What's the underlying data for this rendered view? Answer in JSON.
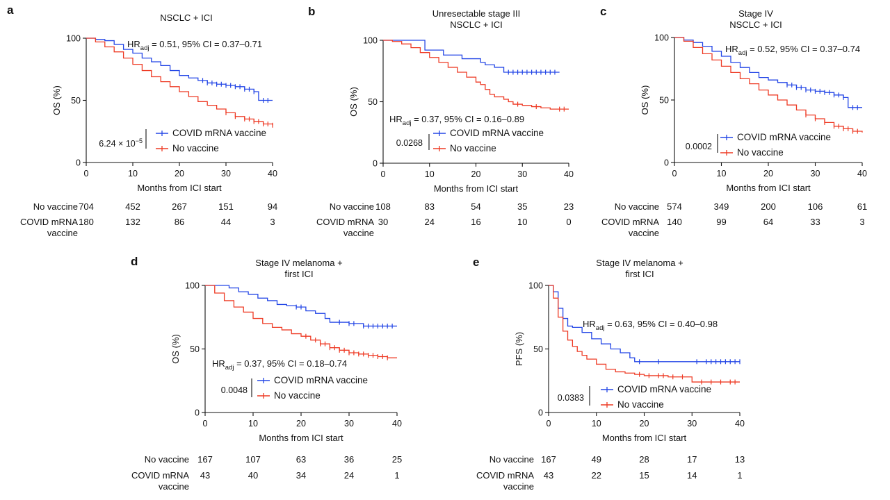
{
  "colors": {
    "vaccine": "#2346e6",
    "no_vaccine": "#ee3a24"
  },
  "chart_data": [
    {
      "panel": "a",
      "type": "line",
      "title": [
        "NSCLC + ICI"
      ],
      "xlabel": "Months from ICI start",
      "ylabel": "OS (%)",
      "xlim": [
        0,
        40
      ],
      "ylim": [
        0,
        100
      ],
      "xticks": [
        0,
        10,
        20,
        30,
        40
      ],
      "yticks": [
        0,
        50,
        100
      ],
      "hr": {
        "prefix": "HR",
        "sub": "adj",
        "text": " = 0.51, 95% CI = 0.37–0.71"
      },
      "pvalue": {
        "base": "6.24 × 10",
        "exp": "−5"
      },
      "series": [
        {
          "name": "COVID mRNA vaccine",
          "color": "#2346e6",
          "x": [
            0,
            2,
            4,
            6,
            8,
            10,
            12,
            14,
            16,
            18,
            20,
            22,
            24,
            26,
            28,
            30,
            32,
            34,
            36,
            37,
            37,
            38,
            40
          ],
          "y": [
            100,
            99,
            98,
            95,
            91,
            88,
            84,
            81,
            78,
            74,
            70,
            68,
            66,
            64,
            63,
            62,
            61,
            59,
            57,
            57,
            50,
            50,
            50
          ],
          "censor_x": [
            25,
            26,
            27,
            28,
            29,
            30,
            31,
            32,
            33,
            34,
            35,
            36,
            38,
            39
          ]
        },
        {
          "name": "No vaccine",
          "color": "#ee3a24",
          "x": [
            0,
            2,
            4,
            6,
            8,
            10,
            12,
            14,
            16,
            18,
            20,
            22,
            24,
            26,
            28,
            30,
            32,
            34,
            36,
            38,
            40
          ],
          "y": [
            100,
            97,
            93,
            89,
            84,
            79,
            74,
            69,
            65,
            61,
            57,
            53,
            49,
            46,
            43,
            40,
            37,
            35,
            33,
            31,
            30
          ],
          "censor_x": [
            30,
            32,
            34,
            35,
            36,
            37,
            38,
            39,
            40
          ]
        }
      ],
      "risk_table": {
        "rows": [
          {
            "label": [
              "No vaccine"
            ],
            "values": [
              "704",
              "452",
              "267",
              "151",
              "94"
            ]
          },
          {
            "label": [
              "COVID mRNA",
              "vaccine"
            ],
            "values": [
              "180",
              "132",
              "86",
              "44",
              "3"
            ]
          }
        ]
      }
    },
    {
      "panel": "b",
      "type": "line",
      "title": [
        "Unresectable stage III",
        "NSCLC + ICI"
      ],
      "xlabel": "Months from ICI start",
      "ylabel": "OS (%)",
      "xlim": [
        0,
        40
      ],
      "ylim": [
        0,
        100
      ],
      "xticks": [
        0,
        10,
        20,
        30,
        40
      ],
      "yticks": [
        0,
        50,
        100
      ],
      "hr": {
        "prefix": "HR",
        "sub": "adj",
        "text": " = 0.37, 95% CI = 0.16–0.89"
      },
      "pvalue": {
        "base": "0.0268",
        "exp": ""
      },
      "series": [
        {
          "name": "COVID mRNA vaccine",
          "color": "#2346e6",
          "x": [
            0,
            3,
            6,
            8,
            9,
            11,
            13,
            15,
            17,
            19,
            21,
            22,
            24,
            26,
            30,
            35,
            38
          ],
          "y": [
            100,
            100,
            100,
            100,
            92,
            92,
            88,
            88,
            85,
            85,
            82,
            80,
            78,
            74,
            74,
            74,
            74
          ],
          "censor_x": [
            27,
            28,
            29,
            30,
            31,
            32,
            33,
            34,
            35,
            36,
            37
          ]
        },
        {
          "name": "No vaccine",
          "color": "#ee3a24",
          "x": [
            0,
            2,
            4,
            6,
            8,
            10,
            12,
            14,
            16,
            18,
            20,
            21,
            22,
            23,
            24,
            26,
            27,
            28,
            30,
            32,
            34,
            36,
            38,
            40
          ],
          "y": [
            100,
            99,
            97,
            94,
            90,
            86,
            82,
            78,
            74,
            70,
            66,
            64,
            60,
            56,
            54,
            52,
            50,
            48,
            47,
            46,
            45,
            44,
            44,
            44
          ],
          "censor_x": [
            29,
            33,
            38,
            39
          ]
        }
      ],
      "risk_table": {
        "rows": [
          {
            "label": [
              "No vaccine"
            ],
            "values": [
              "108",
              "83",
              "54",
              "35",
              "23"
            ]
          },
          {
            "label": [
              "COVID mRNA",
              "vaccine"
            ],
            "values": [
              "30",
              "24",
              "16",
              "10",
              "0"
            ]
          }
        ]
      }
    },
    {
      "panel": "c",
      "type": "line",
      "title": [
        "Stage IV",
        "NSCLC + ICI"
      ],
      "xlabel": "Months from ICI start",
      "ylabel": "OS (%)",
      "xlim": [
        0,
        40
      ],
      "ylim": [
        0,
        100
      ],
      "xticks": [
        0,
        10,
        20,
        30,
        40
      ],
      "yticks": [
        0,
        50,
        100
      ],
      "hr": {
        "prefix": "HR",
        "sub": "adj",
        "text": " = 0.52, 95% CI = 0.37–0.74"
      },
      "pvalue": {
        "base": "0.0002",
        "exp": ""
      },
      "series": [
        {
          "name": "COVID mRNA vaccine",
          "color": "#2346e6",
          "x": [
            0,
            2,
            4,
            6,
            8,
            10,
            12,
            14,
            16,
            18,
            20,
            22,
            24,
            26,
            28,
            30,
            32,
            34,
            36,
            37,
            37,
            38,
            40
          ],
          "y": [
            100,
            98,
            96,
            93,
            89,
            85,
            80,
            76,
            72,
            68,
            66,
            64,
            62,
            60,
            58,
            57,
            56,
            54,
            52,
            52,
            44,
            44,
            44
          ],
          "censor_x": [
            24,
            25,
            26,
            27,
            28,
            29,
            30,
            31,
            32,
            33,
            34,
            35,
            36,
            38,
            39
          ]
        },
        {
          "name": "No vaccine",
          "color": "#ee3a24",
          "x": [
            0,
            2,
            4,
            6,
            8,
            10,
            12,
            14,
            16,
            18,
            20,
            22,
            24,
            26,
            28,
            30,
            32,
            34,
            36,
            38,
            40
          ],
          "y": [
            100,
            97,
            92,
            87,
            82,
            77,
            72,
            67,
            63,
            58,
            54,
            50,
            46,
            42,
            38,
            35,
            32,
            29,
            27,
            25,
            24
          ],
          "censor_x": [
            28,
            30,
            32,
            34,
            35,
            36,
            37,
            38,
            39
          ]
        }
      ],
      "risk_table": {
        "rows": [
          {
            "label": [
              "No vaccine"
            ],
            "values": [
              "574",
              "349",
              "200",
              "106",
              "61"
            ]
          },
          {
            "label": [
              "COVID mRNA",
              "vaccine"
            ],
            "values": [
              "140",
              "99",
              "64",
              "33",
              "3"
            ]
          }
        ]
      }
    },
    {
      "panel": "d",
      "type": "line",
      "title": [
        "Stage IV melanoma +",
        "first ICI"
      ],
      "xlabel": "Months from ICI start",
      "ylabel": "OS (%)",
      "xlim": [
        0,
        40
      ],
      "ylim": [
        0,
        100
      ],
      "xticks": [
        0,
        10,
        20,
        30,
        40
      ],
      "yticks": [
        0,
        50,
        100
      ],
      "hr": {
        "prefix": "HR",
        "sub": "adj",
        "text": " = 0.37, 95% CI = 0.18–0.74"
      },
      "pvalue": {
        "base": "0.0048",
        "exp": ""
      },
      "series": [
        {
          "name": "COVID mRNA vaccine",
          "color": "#2346e6",
          "x": [
            0,
            3,
            5,
            7,
            9,
            11,
            13,
            15,
            17,
            19,
            21,
            23,
            25,
            26,
            28,
            30,
            33,
            36,
            38,
            40
          ],
          "y": [
            100,
            100,
            98,
            95,
            93,
            90,
            88,
            85,
            84,
            83,
            80,
            78,
            74,
            71,
            71,
            70,
            68,
            68,
            68,
            68
          ],
          "censor_x": [
            19,
            20,
            28,
            30,
            31,
            33,
            34,
            35,
            36,
            37,
            38,
            39
          ]
        },
        {
          "name": "No vaccine",
          "color": "#ee3a24",
          "x": [
            0,
            2,
            4,
            6,
            8,
            10,
            12,
            14,
            16,
            18,
            20,
            22,
            24,
            26,
            28,
            30,
            32,
            34,
            36,
            38,
            40
          ],
          "y": [
            100,
            94,
            88,
            83,
            79,
            74,
            70,
            67,
            65,
            62,
            60,
            57,
            54,
            51,
            49,
            47,
            46,
            45,
            44,
            43,
            43
          ],
          "censor_x": [
            21,
            23,
            24,
            25,
            26,
            27,
            28,
            29,
            30,
            31,
            32,
            33,
            34,
            35,
            36,
            37,
            38
          ]
        }
      ],
      "risk_table": {
        "rows": [
          {
            "label": [
              "No vaccine"
            ],
            "values": [
              "167",
              "107",
              "63",
              "36",
              "25"
            ]
          },
          {
            "label": [
              "COVID mRNA",
              "vaccine"
            ],
            "values": [
              "43",
              "40",
              "34",
              "24",
              "1"
            ]
          }
        ]
      }
    },
    {
      "panel": "e",
      "type": "line",
      "title": [
        "Stage IV melanoma +",
        "first ICI"
      ],
      "xlabel": "Months from ICI start",
      "ylabel": "PFS (%)",
      "xlim": [
        0,
        40
      ],
      "ylim": [
        0,
        100
      ],
      "xticks": [
        0,
        10,
        20,
        30,
        40
      ],
      "yticks": [
        0,
        50,
        100
      ],
      "hr": {
        "prefix": "HR",
        "sub": "adj",
        "text": " = 0.63, 95% CI = 0.40–0.98"
      },
      "pvalue": {
        "base": "0.0383",
        "exp": ""
      },
      "series": [
        {
          "name": "COVID mRNA vaccine",
          "color": "#2346e6",
          "x": [
            0,
            1,
            2,
            3,
            4,
            5,
            7,
            9,
            11,
            13,
            15,
            17,
            18,
            20,
            25,
            30,
            35,
            40
          ],
          "y": [
            100,
            95,
            82,
            74,
            68,
            67,
            63,
            58,
            54,
            50,
            47,
            43,
            40,
            40,
            40,
            40,
            40,
            40
          ],
          "censor_x": [
            19,
            23,
            31,
            33,
            34,
            35,
            36,
            37,
            38,
            39,
            40
          ]
        },
        {
          "name": "No vaccine",
          "color": "#ee3a24",
          "x": [
            0,
            1,
            2,
            3,
            4,
            5,
            6,
            7,
            8,
            10,
            12,
            14,
            16,
            18,
            20,
            25,
            29,
            30,
            35,
            40
          ],
          "y": [
            100,
            90,
            75,
            64,
            57,
            52,
            48,
            45,
            42,
            38,
            34,
            32,
            31,
            30,
            29,
            28,
            28,
            24,
            24,
            24
          ],
          "censor_x": [
            19,
            21,
            23,
            24,
            26,
            28,
            32,
            34,
            36,
            38,
            39
          ]
        }
      ],
      "risk_table": {
        "rows": [
          {
            "label": [
              "No vaccine"
            ],
            "values": [
              "167",
              "49",
              "28",
              "17",
              "13"
            ]
          },
          {
            "label": [
              "COVID mRNA",
              "vaccine"
            ],
            "values": [
              "43",
              "22",
              "15",
              "14",
              "1"
            ]
          }
        ]
      }
    }
  ]
}
